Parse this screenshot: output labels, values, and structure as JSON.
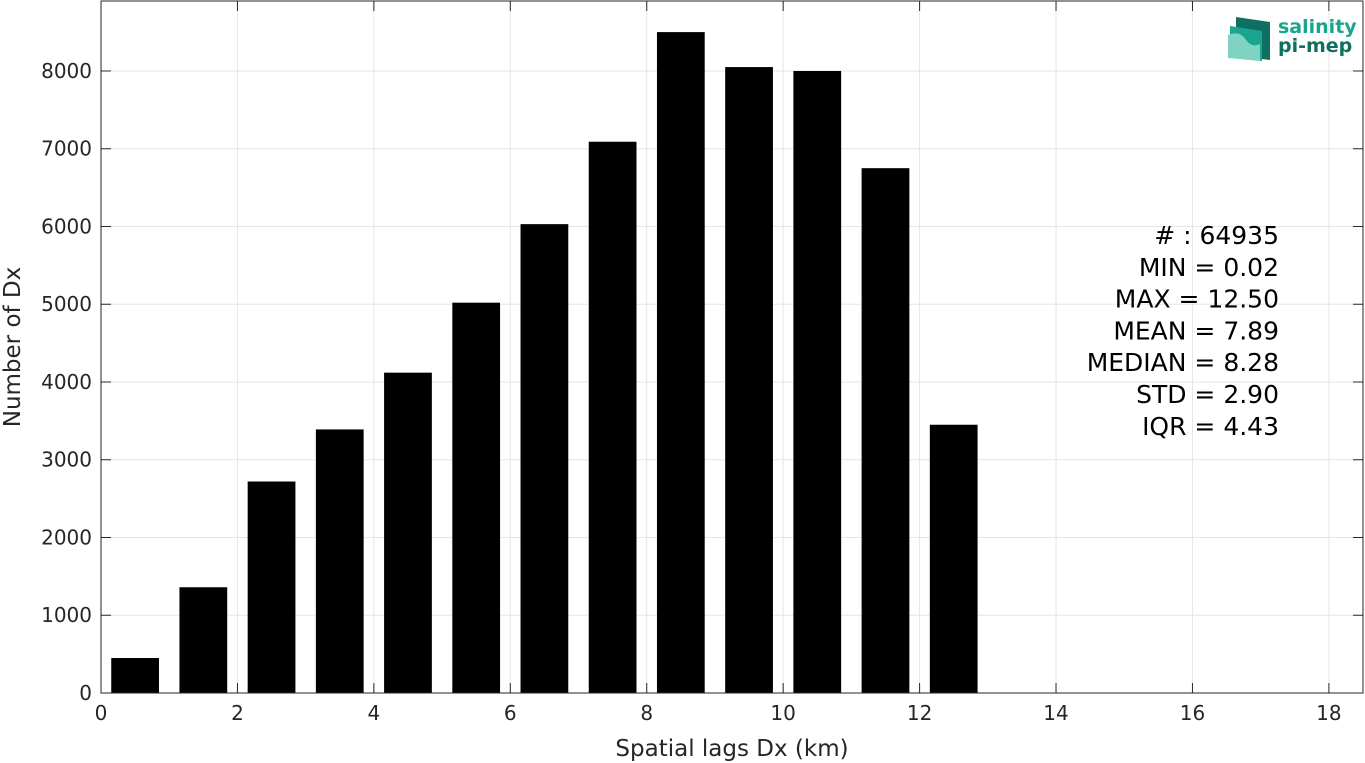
{
  "chart_data": {
    "type": "bar",
    "x": [
      0.5,
      1.5,
      2.5,
      3.5,
      4.5,
      5.5,
      6.5,
      7.5,
      8.5,
      9.5,
      10.5,
      11.5,
      12.5
    ],
    "values": [
      450,
      1360,
      2720,
      3390,
      4120,
      5020,
      6030,
      7090,
      8500,
      8050,
      8000,
      6750,
      3450
    ],
    "bar_width": 0.7,
    "bar_color": "#000000",
    "xlabel": "Spatial lags Dx (km)",
    "ylabel": "Number of Dx",
    "xlim": [
      0,
      18.5
    ],
    "ylim": [
      0,
      8900
    ],
    "xticks": [
      0,
      2,
      4,
      6,
      8,
      10,
      12,
      14,
      16,
      18
    ],
    "yticks": [
      0,
      1000,
      2000,
      3000,
      4000,
      5000,
      6000,
      7000,
      8000
    ],
    "grid": true,
    "annotations": [
      "# : 64935",
      "MIN = 0.02",
      "MAX =  12.50",
      "MEAN = 7.89",
      "MEDIAN = 8.28",
      "STD = 2.90",
      "IQR = 4.43"
    ]
  },
  "logo": {
    "line1": "salinity",
    "line2": "pi-mep",
    "color_main": "#1aa58f",
    "color_dark": "#0f6f60"
  }
}
